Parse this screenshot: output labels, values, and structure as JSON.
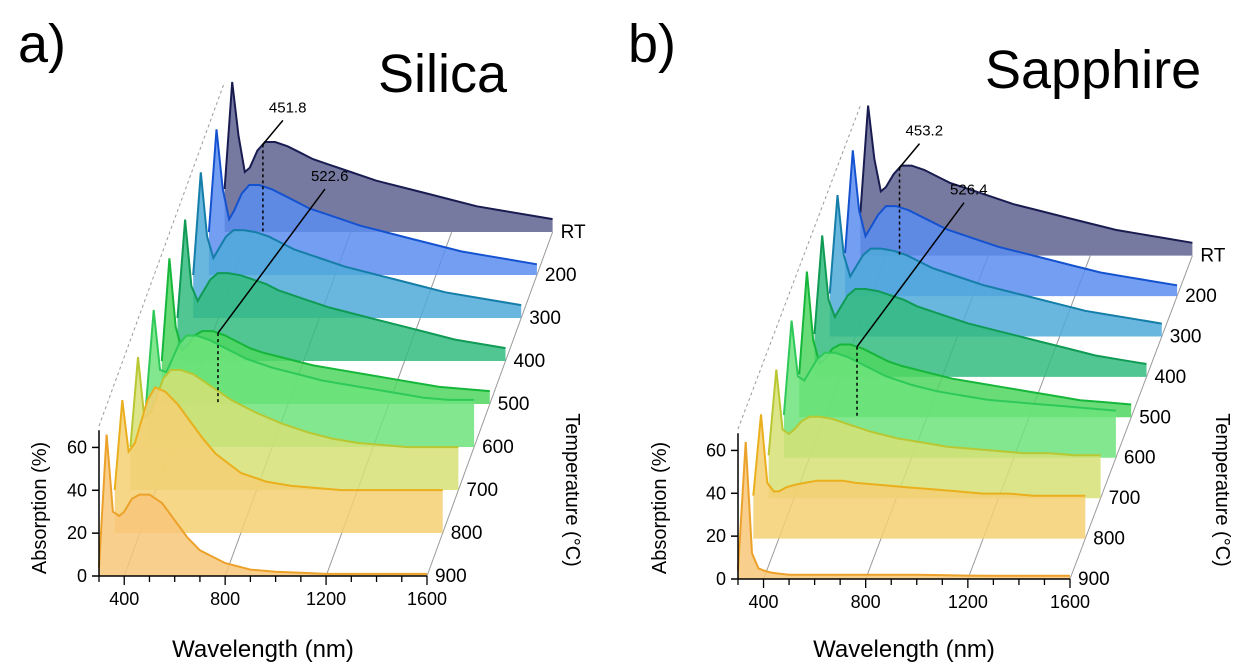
{
  "chart_data": [
    {
      "type": "area",
      "panel_label": "a)",
      "title": "Silica",
      "xlabel": "Wavelength (nm)",
      "ylabel": "Absorption (%)",
      "zlabel": "Temperature (°C)",
      "x_ticks": [
        400,
        800,
        1200,
        1600
      ],
      "y_ticks": [
        0,
        20,
        40,
        60
      ],
      "xlim": [
        300,
        1600
      ],
      "ylim": [
        0,
        70
      ],
      "series_order_back_to_front": [
        "RT",
        "200",
        "300",
        "400",
        "500",
        "600",
        "700",
        "800",
        "900"
      ],
      "x": [
        300,
        330,
        355,
        380,
        400,
        430,
        460,
        500,
        550,
        600,
        650,
        700,
        800,
        900,
        1000,
        1100,
        1200,
        1300,
        1400,
        1500,
        1600
      ],
      "series": [
        {
          "name": "RT",
          "color": "#5e6390",
          "line": "#191c50",
          "values": [
            20,
            70,
            45,
            28,
            30,
            38,
            42,
            42,
            40,
            37,
            34,
            32,
            28,
            24,
            21,
            18,
            15,
            12,
            10,
            8,
            6
          ]
        },
        {
          "name": "200",
          "color": "#5b8df0",
          "line": "#1552d0",
          "values": [
            20,
            68,
            40,
            26,
            30,
            38,
            42,
            42,
            40,
            37,
            34,
            31,
            27,
            23,
            20,
            17,
            14,
            11,
            9,
            7,
            5
          ]
        },
        {
          "name": "300",
          "color": "#4fa9d9",
          "line": "#157ea8",
          "values": [
            20,
            68,
            38,
            28,
            32,
            38,
            41,
            41,
            40,
            38,
            35,
            32,
            28,
            24,
            21,
            18,
            15,
            12,
            10,
            8,
            6
          ]
        },
        {
          "name": "400",
          "color": "#33bb7f",
          "line": "#0f9a55",
          "values": [
            20,
            66,
            35,
            28,
            32,
            38,
            41,
            41,
            40,
            38,
            36,
            33,
            29,
            25,
            22,
            19,
            16,
            13,
            10,
            8,
            6
          ]
        },
        {
          "name": "500",
          "color": "#4fd660",
          "line": "#15b63a",
          "values": [
            20,
            68,
            36,
            25,
            27,
            32,
            34,
            34,
            32,
            29,
            26,
            24,
            21,
            18,
            16,
            14,
            12,
            10,
            8,
            7,
            6
          ]
        },
        {
          "name": "600",
          "color": "#6ce37a",
          "line": "#2fc95a",
          "values": [
            20,
            64,
            36,
            35,
            40,
            48,
            52,
            52,
            50,
            47,
            44,
            41,
            37,
            34,
            31,
            29,
            27,
            25,
            23,
            22,
            22
          ]
        },
        {
          "name": "700",
          "color": "#d6e075",
          "line": "#b9c733",
          "values": [
            20,
            62,
            34,
            36,
            42,
            52,
            56,
            56,
            54,
            50,
            46,
            42,
            36,
            31,
            27,
            24,
            22,
            21,
            20,
            20,
            20
          ]
        },
        {
          "name": "800",
          "color": "#f5cf72",
          "line": "#eaaf1c",
          "values": [
            20,
            62,
            38,
            42,
            50,
            62,
            68,
            66,
            60,
            52,
            44,
            37,
            28,
            24,
            22,
            21,
            20,
            20,
            20,
            20,
            20
          ]
        },
        {
          "name": "900",
          "color": "#f8c77a",
          "line": "#eca22a",
          "values": [
            4,
            66,
            30,
            28,
            30,
            36,
            38,
            38,
            34,
            26,
            18,
            12,
            6,
            3,
            2,
            1.5,
            1,
            1,
            1,
            1,
            1
          ]
        }
      ],
      "annotations": [
        {
          "text": "451.8",
          "series": "RT",
          "x": 451.8,
          "style": "dotted"
        },
        {
          "text": "522.6",
          "series": "500",
          "x": 522.6,
          "style": "dotted"
        }
      ]
    },
    {
      "type": "area",
      "panel_label": "b)",
      "title": "Sapphire",
      "xlabel": "Wavelength (nm)",
      "ylabel": "Absorption (%)",
      "zlabel": "Temperature (°C)",
      "x_ticks": [
        400,
        800,
        1200,
        1600
      ],
      "y_ticks": [
        0,
        20,
        40,
        60
      ],
      "xlim": [
        300,
        1600
      ],
      "ylim": [
        0,
        70
      ],
      "series_order_back_to_front": [
        "RT",
        "200",
        "300",
        "400",
        "500",
        "600",
        "700",
        "800",
        "900"
      ],
      "x": [
        300,
        330,
        355,
        380,
        400,
        430,
        460,
        500,
        550,
        600,
        650,
        700,
        800,
        900,
        1000,
        1100,
        1200,
        1300,
        1400,
        1500,
        1600
      ],
      "series": [
        {
          "name": "RT",
          "color": "#5e6390",
          "line": "#191c50",
          "values": [
            20,
            70,
            45,
            30,
            32,
            38,
            42,
            42,
            40,
            37,
            34,
            32,
            28,
            24,
            21,
            18,
            15,
            12,
            10,
            8,
            6
          ]
        },
        {
          "name": "200",
          "color": "#5b8df0",
          "line": "#1552d0",
          "values": [
            20,
            68,
            40,
            28,
            32,
            38,
            42,
            42,
            40,
            37,
            34,
            31,
            27,
            23,
            20,
            17,
            14,
            11,
            9,
            7,
            5
          ]
        },
        {
          "name": "300",
          "color": "#4fa9d9",
          "line": "#157ea8",
          "values": [
            20,
            66,
            38,
            28,
            32,
            38,
            41,
            41,
            40,
            38,
            35,
            32,
            28,
            24,
            21,
            18,
            15,
            12,
            10,
            8,
            6
          ]
        },
        {
          "name": "400",
          "color": "#33bb7f",
          "line": "#0f9a55",
          "values": [
            20,
            66,
            36,
            28,
            32,
            38,
            41,
            41,
            40,
            38,
            36,
            33,
            29,
            25,
            22,
            19,
            16,
            13,
            10,
            8,
            6
          ]
        },
        {
          "name": "500",
          "color": "#4fd660",
          "line": "#15b63a",
          "values": [
            20,
            68,
            36,
            25,
            27,
            32,
            34,
            34,
            32,
            29,
            26,
            24,
            21,
            18,
            16,
            14,
            12,
            10,
            8,
            7,
            6
          ]
        },
        {
          "name": "600",
          "color": "#6ce37a",
          "line": "#2fc95a",
          "values": [
            20,
            64,
            38,
            36,
            40,
            46,
            49,
            49,
            47,
            44,
            41,
            38,
            34,
            31,
            29,
            27,
            26,
            25,
            24,
            23,
            22
          ]
        },
        {
          "name": "700",
          "color": "#d6e075",
          "line": "#b9c733",
          "values": [
            20,
            60,
            32,
            30,
            32,
            36,
            38,
            38,
            37,
            35,
            33,
            31,
            28,
            26,
            24,
            23,
            22,
            21,
            21,
            20,
            20
          ]
        },
        {
          "name": "800",
          "color": "#f5cf72",
          "line": "#eaaf1c",
          "values": [
            20,
            58,
            26,
            22,
            22,
            24,
            25,
            26,
            27,
            27,
            27,
            26,
            25,
            24,
            23,
            22,
            21,
            21,
            20,
            20,
            20
          ]
        },
        {
          "name": "900",
          "color": "#f8c77a",
          "line": "#eca22a",
          "values": [
            4,
            64,
            12,
            5,
            4,
            3,
            2.5,
            2,
            2,
            2,
            2,
            2,
            2,
            2,
            2,
            1.8,
            1.6,
            1.5,
            1.5,
            1.5,
            1.5
          ]
        }
      ],
      "annotations": [
        {
          "text": "453.2",
          "series": "RT",
          "x": 453.2,
          "style": "dotted"
        },
        {
          "text": "526.4",
          "series": "500",
          "x": 526.4,
          "style": "dotted"
        }
      ]
    }
  ]
}
